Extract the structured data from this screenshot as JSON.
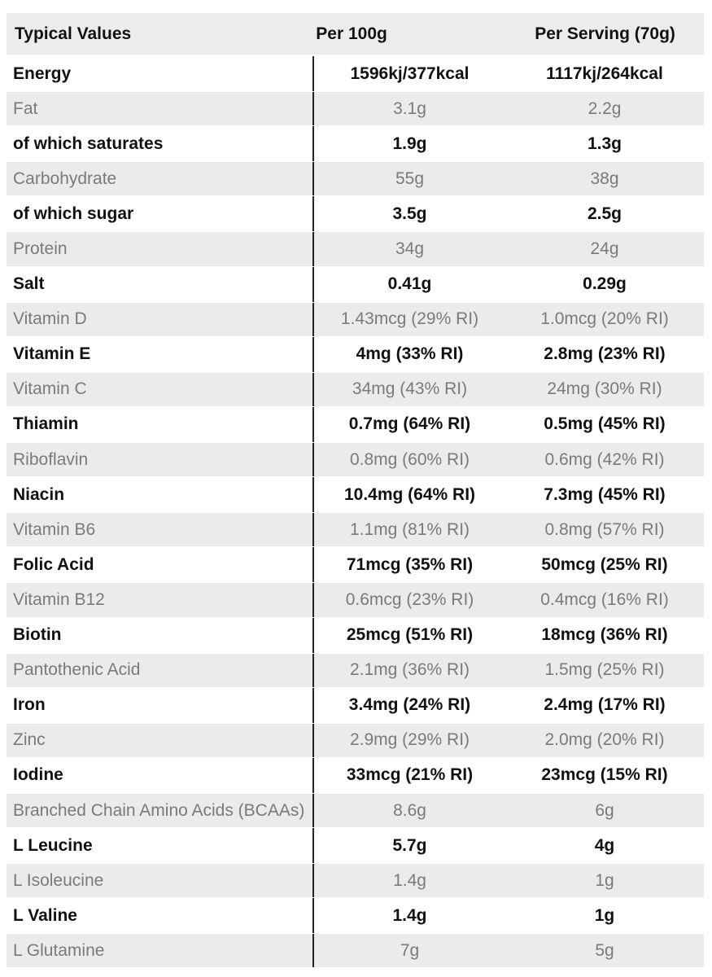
{
  "header": {
    "col1": "Typical Values",
    "col2": "Per 100g",
    "col3": "Per Serving (70g)"
  },
  "rows": [
    {
      "name": "Energy",
      "per100": "1596kj/377kcal",
      "serving": "1117kj/264kcal",
      "bold": true
    },
    {
      "name": "Fat",
      "per100": "3.1g",
      "serving": "2.2g",
      "bold": false
    },
    {
      "name": "of which saturates",
      "per100": "1.9g",
      "serving": "1.3g",
      "bold": true
    },
    {
      "name": "Carbohydrate",
      "per100": "55g",
      "serving": "38g",
      "bold": false
    },
    {
      "name": "of which sugar",
      "per100": "3.5g",
      "serving": "2.5g",
      "bold": true
    },
    {
      "name": "Protein",
      "per100": "34g",
      "serving": "24g",
      "bold": false
    },
    {
      "name": "Salt",
      "per100": "0.41g",
      "serving": "0.29g",
      "bold": true
    },
    {
      "name": "Vitamin D",
      "per100": "1.43mcg (29% RI)",
      "serving": "1.0mcg (20% RI)",
      "bold": false
    },
    {
      "name": "Vitamin E",
      "per100": "4mg (33% RI)",
      "serving": "2.8mg (23% RI)",
      "bold": true
    },
    {
      "name": "Vitamin C",
      "per100": "34mg (43% RI)",
      "serving": "24mg (30% RI)",
      "bold": false
    },
    {
      "name": "Thiamin",
      "per100": "0.7mg (64% RI)",
      "serving": "0.5mg (45% RI)",
      "bold": true
    },
    {
      "name": "Riboflavin",
      "per100": "0.8mg (60% RI)",
      "serving": "0.6mg (42% RI)",
      "bold": false
    },
    {
      "name": "Niacin",
      "per100": "10.4mg (64% RI)",
      "serving": "7.3mg (45% RI)",
      "bold": true
    },
    {
      "name": "Vitamin B6",
      "per100": "1.1mg (81% RI)",
      "serving": "0.8mg (57% RI)",
      "bold": false
    },
    {
      "name": "Folic Acid",
      "per100": "71mcg (35% RI)",
      "serving": "50mcg (25% RI)",
      "bold": true
    },
    {
      "name": "Vitamin B12",
      "per100": "0.6mcg (23% RI)",
      "serving": "0.4mcg (16% RI)",
      "bold": false
    },
    {
      "name": "Biotin",
      "per100": "25mcg (51% RI)",
      "serving": "18mcg (36% RI)",
      "bold": true
    },
    {
      "name": "Pantothenic Acid",
      "per100": "2.1mg (36% RI)",
      "serving": "1.5mg (25% RI)",
      "bold": false
    },
    {
      "name": "Iron",
      "per100": "3.4mg (24% RI)",
      "serving": "2.4mg (17% RI)",
      "bold": true
    },
    {
      "name": "Zinc",
      "per100": "2.9mg (29% RI)",
      "serving": "2.0mg (20% RI)",
      "bold": false
    },
    {
      "name": "Iodine",
      "per100": "33mcg (21% RI)",
      "serving": "23mcg (15% RI)",
      "bold": true
    },
    {
      "name": "Branched Chain Amino Acids (BCAAs)",
      "per100": "8.6g",
      "serving": "6g",
      "bold": false
    },
    {
      "name": "L Leucine",
      "per100": "5.7g",
      "serving": "4g",
      "bold": true
    },
    {
      "name": "L Isoleucine",
      "per100": "1.4g",
      "serving": "1g",
      "bold": false
    },
    {
      "name": "L Valine",
      "per100": "1.4g",
      "serving": "1g",
      "bold": true
    },
    {
      "name": "L Glutamine",
      "per100": "7g",
      "serving": "5g",
      "bold": false
    }
  ]
}
